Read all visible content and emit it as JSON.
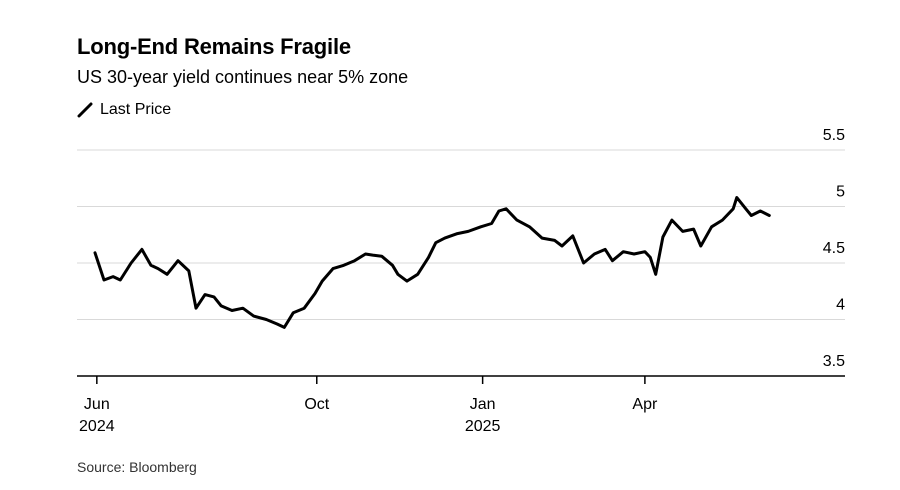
{
  "chart_data": {
    "type": "line",
    "title": "Long-End Remains Fragile",
    "subtitle": "US 30-year yield continues near 5% zone",
    "source": "Source: Bloomberg",
    "legend_placement": "top-left",
    "series": [
      {
        "name": "Last Price",
        "color": "#000000",
        "x": [
          "2024-05-31",
          "2024-06-05",
          "2024-06-10",
          "2024-06-14",
          "2024-06-20",
          "2024-06-26",
          "2024-07-01",
          "2024-07-05",
          "2024-07-10",
          "2024-07-16",
          "2024-07-22",
          "2024-07-26",
          "2024-07-31",
          "2024-08-05",
          "2024-08-09",
          "2024-08-15",
          "2024-08-21",
          "2024-08-27",
          "2024-09-03",
          "2024-09-09",
          "2024-09-13",
          "2024-09-18",
          "2024-09-24",
          "2024-09-30",
          "2024-10-04",
          "2024-10-10",
          "2024-10-16",
          "2024-10-22",
          "2024-10-28",
          "2024-11-01",
          "2024-11-06",
          "2024-11-12",
          "2024-11-15",
          "2024-11-20",
          "2024-11-26",
          "2024-12-02",
          "2024-12-06",
          "2024-12-11",
          "2024-12-18",
          "2024-12-24",
          "2024-12-31",
          "2025-01-06",
          "2025-01-10",
          "2025-01-14",
          "2025-01-20",
          "2025-01-27",
          "2025-02-03",
          "2025-02-10",
          "2025-02-14",
          "2025-02-20",
          "2025-02-26",
          "2025-03-04",
          "2025-03-10",
          "2025-03-14",
          "2025-03-20",
          "2025-03-26",
          "2025-04-01",
          "2025-04-04",
          "2025-04-07",
          "2025-04-11",
          "2025-04-16",
          "2025-04-22",
          "2025-04-28",
          "2025-05-02",
          "2025-05-08",
          "2025-05-14",
          "2025-05-20",
          "2025-05-22",
          "2025-05-27",
          "2025-05-30",
          "2025-06-04",
          "2025-06-09"
        ],
        "values": [
          4.59,
          4.35,
          4.38,
          4.35,
          4.5,
          4.62,
          4.48,
          4.45,
          4.4,
          4.52,
          4.43,
          4.1,
          4.22,
          4.2,
          4.12,
          4.08,
          4.1,
          4.03,
          4.0,
          3.96,
          3.93,
          4.06,
          4.1,
          4.23,
          4.34,
          4.45,
          4.48,
          4.52,
          4.58,
          4.57,
          4.56,
          4.48,
          4.4,
          4.34,
          4.4,
          4.55,
          4.68,
          4.72,
          4.76,
          4.78,
          4.82,
          4.85,
          4.96,
          4.98,
          4.88,
          4.82,
          4.72,
          4.7,
          4.65,
          4.74,
          4.5,
          4.58,
          4.62,
          4.52,
          4.6,
          4.58,
          4.6,
          4.55,
          4.4,
          4.73,
          4.88,
          4.78,
          4.8,
          4.65,
          4.82,
          4.88,
          4.98,
          5.08,
          4.98,
          4.92,
          4.96,
          4.92
        ]
      }
    ],
    "x_ticks": [
      {
        "date": "2024-06-01",
        "label": "Jun",
        "sublabel": "2024"
      },
      {
        "date": "2024-10-01",
        "label": "Oct",
        "sublabel": ""
      },
      {
        "date": "2025-01-01",
        "label": "Jan",
        "sublabel": "2025"
      },
      {
        "date": "2025-04-01",
        "label": "Apr",
        "sublabel": ""
      }
    ],
    "xlim": [
      "2024-05-21",
      "2025-07-21"
    ],
    "y_ticks": [
      "3.5",
      "4",
      "4.5",
      "5",
      "5.5"
    ],
    "ylim": [
      3.5,
      5.5
    ],
    "y_axis_side": "right",
    "grid": "horizontal"
  }
}
